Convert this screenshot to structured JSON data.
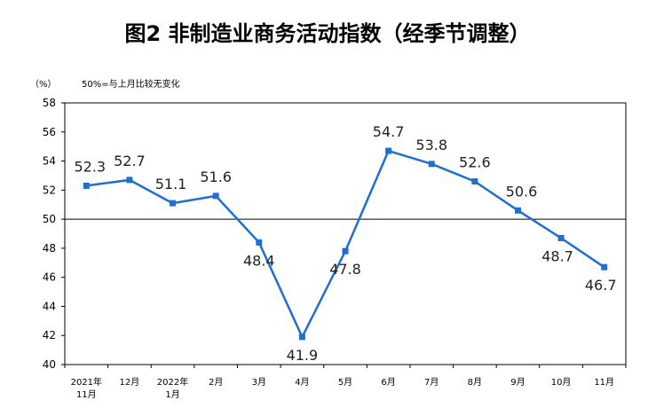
{
  "chart_data": {
    "type": "line",
    "title": "图2  非制造业商务活动指数（经季节调整）",
    "unit_label": "（%）",
    "note": "50%=与上月比较无变化",
    "categories": [
      [
        "2021年",
        "11月"
      ],
      [
        "12月"
      ],
      [
        "2022年",
        "1月"
      ],
      [
        "2月"
      ],
      [
        "3月"
      ],
      [
        "4月"
      ],
      [
        "5月"
      ],
      [
        "6月"
      ],
      [
        "7月"
      ],
      [
        "8月"
      ],
      [
        "9月"
      ],
      [
        "10月"
      ],
      [
        "11月"
      ]
    ],
    "series": [
      {
        "values": [
          52.3,
          52.7,
          51.1,
          51.6,
          48.4,
          41.9,
          47.8,
          54.7,
          53.8,
          52.6,
          50.6,
          48.7,
          46.7
        ]
      }
    ],
    "data_labels": [
      "52.3",
      "52.7",
      "51.1",
      "51.6",
      "48.4",
      "41.9",
      "47.8",
      "54.7",
      "53.8",
      "52.6",
      "50.6",
      "48.7",
      "46.7"
    ],
    "ylim": [
      40,
      58
    ],
    "yticks": [
      40,
      42,
      44,
      46,
      48,
      50,
      52,
      54,
      56,
      58
    ],
    "reference_line": 50,
    "grid": false,
    "legend": "none",
    "line_color": "#1f6fd1",
    "axis_color": "#000000"
  }
}
